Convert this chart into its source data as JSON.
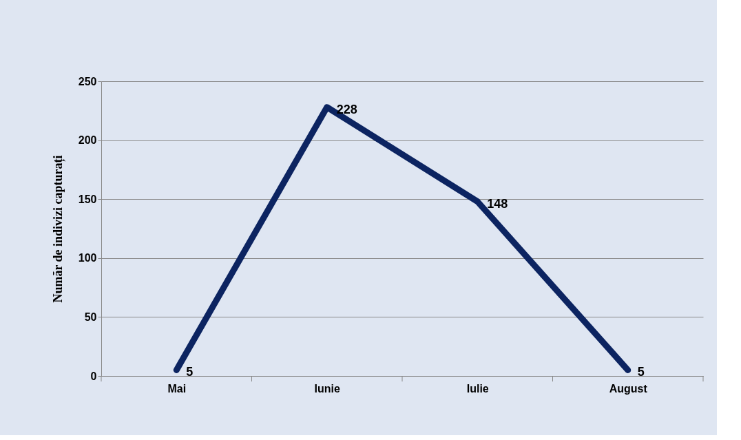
{
  "chart_data": {
    "type": "line",
    "ylabel": "Număr de indivizi capturați",
    "categories": [
      "Mai",
      "Iunie",
      "Iulie",
      "August"
    ],
    "series": [
      {
        "color": "#0c2461",
        "values": [
          5,
          228,
          148,
          5
        ]
      }
    ],
    "ylim": [
      0,
      250
    ],
    "yticks": [
      0,
      50,
      100,
      150,
      200,
      250
    ],
    "grid": "y",
    "data_labels": true,
    "marker": "none",
    "line_style": "solid"
  }
}
